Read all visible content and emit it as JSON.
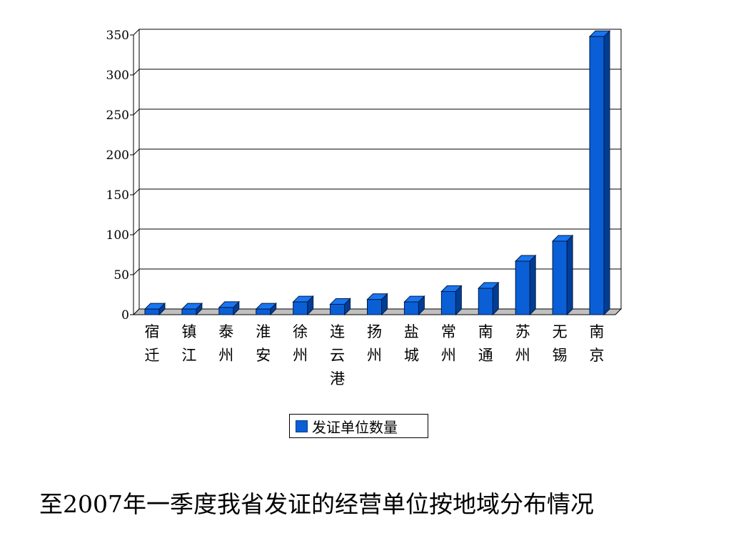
{
  "chart_data": {
    "type": "bar",
    "categories": [
      [
        "宿",
        "迁"
      ],
      [
        "镇",
        "江"
      ],
      [
        "泰",
        "州"
      ],
      [
        "淮",
        "安"
      ],
      [
        "徐",
        "州"
      ],
      [
        "连",
        "云",
        "港"
      ],
      [
        "扬",
        "州"
      ],
      [
        "盐",
        "城"
      ],
      [
        "常",
        "州"
      ],
      [
        "南",
        "通"
      ],
      [
        "苏",
        "州"
      ],
      [
        "无",
        "锡"
      ],
      [
        "南",
        "京"
      ]
    ],
    "series": [
      {
        "name": "发证单位数量",
        "values": [
          7,
          7,
          9,
          7,
          16,
          13,
          19,
          16,
          29,
          33,
          67,
          92,
          348
        ],
        "color": "#0a5fd6"
      }
    ],
    "ylim": [
      0,
      350
    ],
    "yticks": [
      0,
      50,
      100,
      150,
      200,
      250,
      300,
      350
    ],
    "grid": true,
    "legend_position": "bottom",
    "three_d": true
  },
  "caption": "至2007年一季度我省发证的经营单位按地域分布情况"
}
